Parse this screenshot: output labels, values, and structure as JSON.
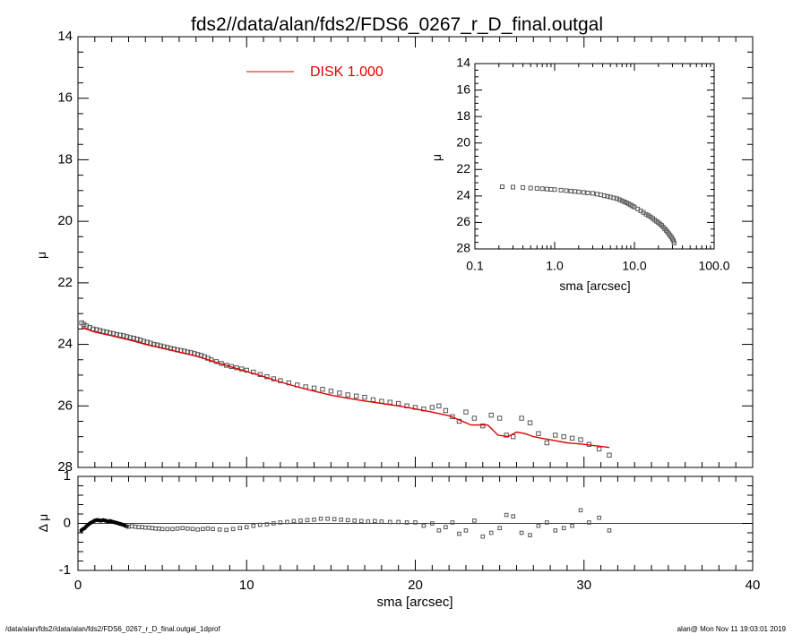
{
  "title": "fds2//data/alan/fds2/FDS6_0267_r_D_final.outgal",
  "footer": {
    "left": "/data/alan/fds2//data/alan/fds2/FDS6_0267_r_D_final.outgal_1dprof",
    "right": "alan@  Mon Nov 11 19:03:01 2019"
  },
  "colors": {
    "model": "#e00000",
    "data": "#555555",
    "axes": "#000000"
  },
  "chart_data": [
    {
      "panel": "main",
      "type": "scatter",
      "xlim": [
        0,
        40
      ],
      "ylim": [
        28,
        14
      ],
      "y_inverted": true,
      "ylabel": "μ",
      "xlabel": "",
      "x_ticks": [
        0,
        10,
        20,
        30,
        40
      ],
      "y_ticks": [
        14,
        16,
        18,
        20,
        22,
        24,
        26,
        28
      ],
      "legend": {
        "label": "DISK  1.000",
        "position": "top-center",
        "color": "#e00000"
      },
      "series": [
        {
          "name": "data",
          "marker": "square",
          "color": "#555555",
          "x": [
            0.22,
            0.35,
            0.5,
            0.7,
            0.9,
            1.1,
            1.3,
            1.5,
            1.7,
            1.9,
            2.1,
            2.3,
            2.5,
            2.7,
            2.9,
            3.1,
            3.3,
            3.5,
            3.7,
            3.9,
            4.1,
            4.3,
            4.5,
            4.7,
            4.9,
            5.1,
            5.3,
            5.5,
            5.7,
            5.9,
            6.1,
            6.3,
            6.5,
            6.7,
            6.9,
            7.1,
            7.3,
            7.5,
            7.7,
            7.9,
            8.2,
            8.5,
            8.8,
            9.1,
            9.4,
            9.7,
            10.0,
            10.4,
            10.8,
            11.2,
            11.6,
            12.0,
            12.5,
            13.0,
            13.5,
            14.0,
            14.5,
            15.0,
            15.5,
            16.0,
            16.5,
            17.0,
            17.5,
            18.0,
            18.5,
            19.0,
            19.5,
            20.0,
            20.5,
            21.0,
            21.4,
            21.8,
            22.2,
            22.6,
            23.0,
            23.5,
            24.0,
            24.5,
            25.0,
            25.4,
            25.8,
            26.3,
            26.8,
            27.3,
            27.8,
            28.3,
            28.8,
            29.3,
            29.8,
            30.3,
            30.9,
            31.5
          ],
          "y": [
            23.3,
            23.35,
            23.4,
            23.45,
            23.5,
            23.52,
            23.55,
            23.58,
            23.6,
            23.63,
            23.65,
            23.68,
            23.7,
            23.72,
            23.75,
            23.78,
            23.8,
            23.83,
            23.86,
            23.9,
            23.93,
            23.96,
            24.0,
            24.02,
            24.05,
            24.08,
            24.1,
            24.13,
            24.15,
            24.18,
            24.2,
            24.22,
            24.25,
            24.27,
            24.3,
            24.33,
            24.36,
            24.4,
            24.45,
            24.5,
            24.56,
            24.62,
            24.68,
            24.72,
            24.76,
            24.8,
            24.84,
            24.9,
            24.98,
            25.05,
            25.12,
            25.18,
            25.25,
            25.32,
            25.38,
            25.42,
            25.46,
            25.52,
            25.58,
            25.64,
            25.68,
            25.72,
            25.8,
            25.85,
            25.88,
            25.92,
            26.0,
            26.05,
            26.1,
            26.05,
            26.0,
            26.15,
            26.35,
            26.5,
            26.2,
            26.4,
            26.65,
            26.3,
            26.4,
            26.95,
            27.0,
            26.4,
            26.55,
            26.9,
            27.2,
            26.95,
            27.0,
            27.05,
            27.1,
            27.25,
            27.4,
            27.6
          ]
        },
        {
          "name": "DISK  1.000",
          "marker": "line",
          "color": "#e00000",
          "x": [
            0.22,
            1.0,
            2.0,
            3.0,
            4.0,
            5.0,
            6.0,
            7.0,
            8.0,
            9.0,
            10.0,
            11.0,
            12.0,
            13.0,
            14.0,
            15.0,
            16.0,
            17.0,
            18.0,
            19.0,
            20.0,
            21.0,
            22.0,
            22.8,
            23.3,
            24.3,
            24.9,
            25.5,
            26.0,
            26.5,
            27.0,
            27.5,
            28.0,
            28.5,
            29.0,
            30.0,
            31.5
          ],
          "y": [
            23.45,
            23.6,
            23.72,
            23.85,
            24.0,
            24.12,
            24.25,
            24.38,
            24.55,
            24.72,
            24.88,
            25.05,
            25.22,
            25.38,
            25.52,
            25.65,
            25.75,
            25.84,
            25.92,
            26.0,
            26.1,
            26.2,
            26.32,
            26.5,
            26.62,
            26.62,
            26.95,
            27.0,
            26.85,
            26.9,
            27.0,
            27.05,
            27.1,
            27.15,
            27.2,
            27.25,
            27.35
          ]
        }
      ]
    },
    {
      "panel": "inset",
      "type": "scatter",
      "xscale": "log",
      "xlim": [
        0.1,
        100.0
      ],
      "ylim": [
        28,
        14
      ],
      "y_inverted": true,
      "xlabel": "sma [arcsec]",
      "ylabel": "μ",
      "x_ticks": [
        0.1,
        1.0,
        10.0,
        100.0
      ],
      "x_tick_labels": [
        "0.1",
        "1.0",
        "10.0",
        "100.0"
      ],
      "y_ticks": [
        14,
        16,
        18,
        20,
        22,
        24,
        26,
        28
      ],
      "series": [
        {
          "name": "data",
          "marker": "square",
          "color": "#555555",
          "x": [
            0.22,
            0.3,
            0.4,
            0.5,
            0.6,
            0.7,
            0.8,
            0.9,
            1.0,
            1.2,
            1.4,
            1.6,
            1.8,
            2.0,
            2.3,
            2.6,
            3.0,
            3.4,
            3.8,
            4.2,
            4.6,
            5.0,
            5.5,
            6.0,
            6.5,
            7.0,
            7.5,
            8.0,
            8.5,
            9.0,
            9.5,
            10.0,
            11.0,
            12.0,
            13.0,
            14.0,
            15.0,
            16.0,
            17.0,
            18.0,
            19.0,
            20.0,
            21.0,
            22.0,
            23.0,
            24.0,
            25.0,
            26.0,
            27.0,
            28.0,
            29.0,
            30.0,
            31.0,
            31.5
          ],
          "y": [
            23.3,
            23.33,
            23.36,
            23.4,
            23.43,
            23.45,
            23.48,
            23.5,
            23.52,
            23.56,
            23.6,
            23.63,
            23.66,
            23.69,
            23.73,
            23.77,
            23.8,
            23.86,
            23.92,
            23.98,
            24.03,
            24.08,
            24.14,
            24.2,
            24.28,
            24.36,
            24.44,
            24.52,
            24.6,
            24.68,
            24.76,
            24.84,
            24.98,
            25.12,
            25.25,
            25.38,
            25.48,
            25.58,
            25.7,
            25.82,
            25.92,
            26.02,
            26.12,
            26.22,
            26.35,
            26.48,
            26.6,
            26.72,
            26.85,
            26.98,
            27.1,
            27.25,
            27.4,
            27.55
          ]
        }
      ]
    },
    {
      "panel": "residual",
      "type": "scatter",
      "xlim": [
        0,
        40
      ],
      "ylim": [
        -1,
        1
      ],
      "xlabel": "sma [arcsec]",
      "ylabel": "Δ μ",
      "x_ticks": [
        0,
        10,
        20,
        30,
        40
      ],
      "y_ticks": [
        -1,
        0,
        1
      ],
      "reference_line": 0,
      "series": [
        {
          "name": "residual",
          "marker": "square",
          "color": "#555555",
          "x": [
            0.2,
            0.3,
            0.4,
            0.5,
            0.6,
            0.7,
            0.8,
            0.9,
            1.0,
            1.1,
            1.2,
            1.3,
            1.4,
            1.5,
            1.6,
            1.7,
            1.8,
            1.9,
            2.0,
            2.1,
            2.2,
            2.3,
            2.4,
            2.5,
            2.6,
            2.7,
            2.8,
            2.9,
            3.0,
            3.2,
            3.4,
            3.6,
            3.8,
            4.0,
            4.2,
            4.4,
            4.6,
            4.8,
            5.0,
            5.3,
            5.6,
            5.9,
            6.2,
            6.5,
            6.8,
            7.1,
            7.4,
            7.7,
            8.0,
            8.4,
            8.8,
            9.2,
            9.6,
            10.0,
            10.4,
            10.8,
            11.2,
            11.6,
            12.0,
            12.4,
            12.8,
            13.2,
            13.6,
            14.0,
            14.4,
            14.8,
            15.2,
            15.6,
            16.0,
            16.4,
            16.8,
            17.2,
            17.6,
            18.0,
            18.5,
            19.0,
            19.5,
            20.0,
            20.5,
            21.0,
            21.4,
            21.8,
            22.2,
            22.6,
            23.0,
            23.5,
            24.0,
            24.5,
            25.0,
            25.4,
            25.8,
            26.3,
            26.8,
            27.3,
            27.8,
            28.3,
            28.8,
            29.3,
            29.8,
            30.3,
            30.9,
            31.5
          ],
          "y": [
            -0.15,
            -0.12,
            -0.1,
            -0.06,
            -0.03,
            0.0,
            0.02,
            0.04,
            0.06,
            0.07,
            0.07,
            0.06,
            0.06,
            0.07,
            0.06,
            0.05,
            0.04,
            0.05,
            0.04,
            0.03,
            0.02,
            0.01,
            0.0,
            -0.01,
            -0.02,
            -0.03,
            -0.05,
            -0.06,
            -0.07,
            -0.06,
            -0.07,
            -0.08,
            -0.08,
            -0.09,
            -0.09,
            -0.1,
            -0.11,
            -0.11,
            -0.12,
            -0.12,
            -0.12,
            -0.11,
            -0.1,
            -0.11,
            -0.12,
            -0.13,
            -0.12,
            -0.11,
            -0.12,
            -0.13,
            -0.14,
            -0.12,
            -0.1,
            -0.08,
            -0.05,
            -0.03,
            -0.02,
            0.0,
            0.02,
            0.03,
            0.05,
            0.06,
            0.07,
            0.08,
            0.1,
            0.1,
            0.09,
            0.08,
            0.07,
            0.06,
            0.05,
            0.04,
            0.05,
            0.04,
            0.03,
            0.03,
            0.02,
            0.02,
            -0.05,
            0.0,
            -0.15,
            -0.08,
            0.02,
            -0.22,
            -0.15,
            0.06,
            -0.28,
            -0.2,
            -0.1,
            0.18,
            0.15,
            -0.2,
            -0.25,
            -0.05,
            0.02,
            -0.15,
            -0.1,
            -0.05,
            0.28,
            0.02,
            0.12,
            -0.15
          ]
        }
      ]
    }
  ]
}
